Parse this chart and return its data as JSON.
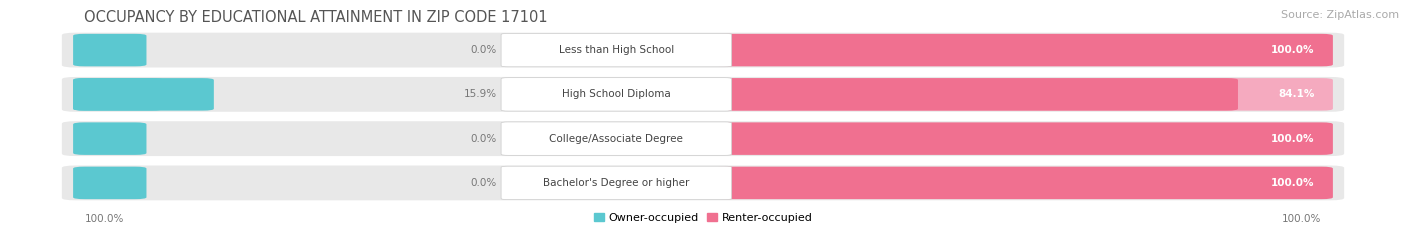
{
  "title": "OCCUPANCY BY EDUCATIONAL ATTAINMENT IN ZIP CODE 17101",
  "source": "Source: ZipAtlas.com",
  "categories": [
    "Less than High School",
    "High School Diploma",
    "College/Associate Degree",
    "Bachelor's Degree or higher"
  ],
  "owner_pct": [
    0.0,
    15.9,
    0.0,
    0.0
  ],
  "renter_pct": [
    100.0,
    84.1,
    100.0,
    100.0
  ],
  "owner_color": "#5BC8D0",
  "renter_color": "#F07090",
  "renter_color_light": "#F5AABF",
  "bar_bg_color": "#E8E8E8",
  "label_box_color": "#FFFFFF",
  "background_color": "#FFFFFF",
  "title_fontsize": 10.5,
  "source_fontsize": 8,
  "bar_label_fontsize": 7.5,
  "cat_label_fontsize": 7.5,
  "legend_fontsize": 8,
  "legend_owner": "Owner-occupied",
  "legend_renter": "Renter-occupied",
  "left_axis_label": "100.0%",
  "right_axis_label": "100.0%",
  "title_color": "#555555",
  "pct_label_color_dark": "#777777",
  "pct_label_color_light": "#FFFFFF"
}
